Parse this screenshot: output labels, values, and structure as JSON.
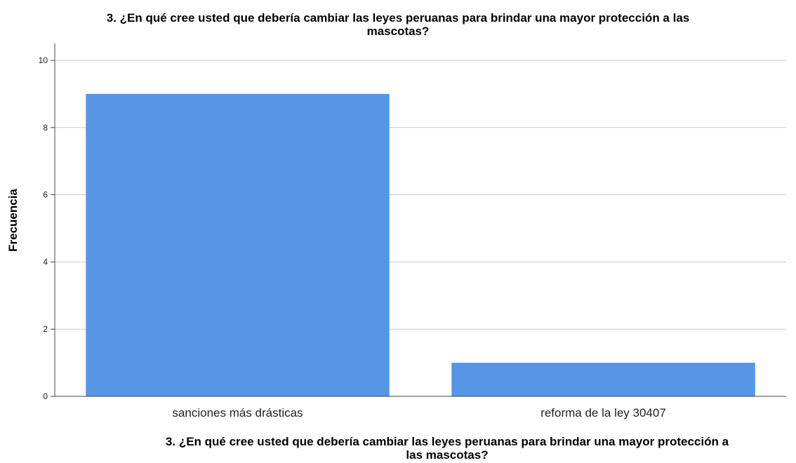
{
  "chart_data": {
    "type": "bar",
    "title": "3. ¿En qué cree usted que debería cambiar las leyes peruanas para brindar una mayor protección a las mascotas?",
    "title_lines": [
      "3. ¿En qué cree usted que debería cambiar las leyes peruanas para brindar una mayor protección a las",
      "mascotas?"
    ],
    "xlabel": "3. ¿En qué cree usted que debería cambiar las leyes peruanas para brindar una mayor protección a las mascotas?",
    "xlabel_lines": [
      "3. ¿En qué cree usted que debería cambiar las leyes peruanas para brindar una mayor protección a",
      "las mascotas?"
    ],
    "ylabel": "Frecuencia",
    "categories": [
      "sanciones más drásticas",
      "reforma de la ley 30407"
    ],
    "values": [
      9,
      1
    ],
    "yticks": [
      0,
      2,
      4,
      6,
      8,
      10
    ],
    "ylim": [
      0,
      10.5
    ],
    "grid": true,
    "bar_color": "#5596e6",
    "grid_color": "#c8c8c8",
    "axis_color": "#444444"
  }
}
